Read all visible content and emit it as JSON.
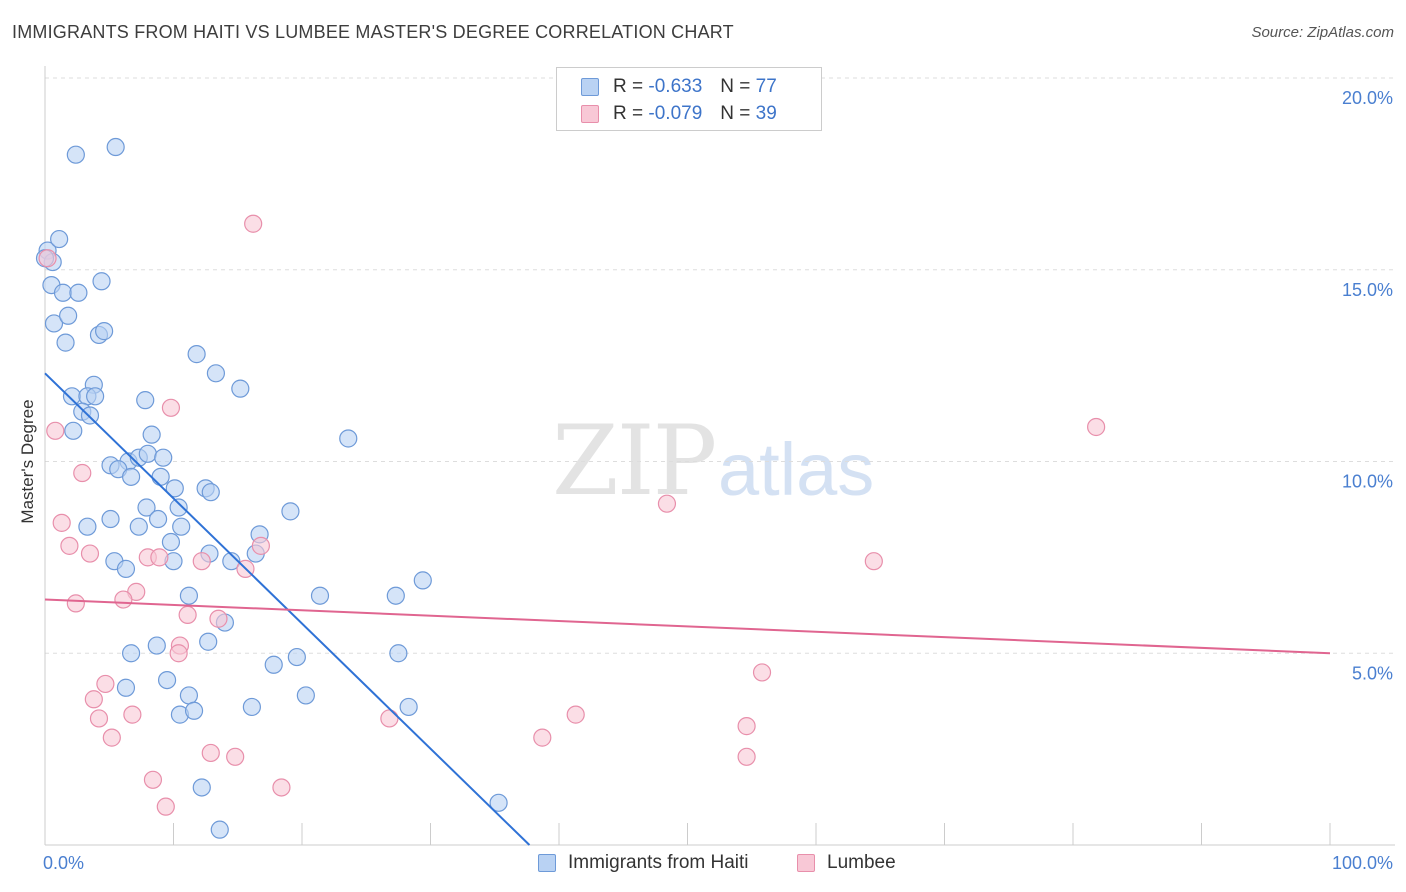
{
  "title": "IMMIGRANTS FROM HAITI VS LUMBEE MASTER'S DEGREE CORRELATION CHART",
  "source": "Source: ZipAtlas.com",
  "watermark_zip": "ZIP",
  "watermark_atlas": "atlas",
  "colors": {
    "haiti_fill": "#b9d2f3",
    "haiti_stroke": "#6e9ad8",
    "haiti_line": "#2f72d6",
    "lumbee_fill": "#f8c8d6",
    "lumbee_stroke": "#e88fab",
    "lumbee_line": "#e06590",
    "grid": "#dddddd",
    "tick_text": "#4a7fd0"
  },
  "legend": {
    "rows": [
      {
        "r_label": "R =",
        "r_value": "-0.633",
        "n_label": "N =",
        "n_value": "77"
      },
      {
        "r_label": "R =",
        "r_value": "-0.079",
        "n_label": "N =",
        "n_value": "39"
      }
    ]
  },
  "bottom_legend": {
    "haiti": "Immigrants from Haiti",
    "lumbee": "Lumbee"
  },
  "chart_data": {
    "type": "scatter",
    "xlabel": "",
    "ylabel": "Master's Degree",
    "xlim": [
      0,
      100
    ],
    "ylim": [
      0,
      20
    ],
    "x_tick_labels": [
      "0.0%",
      "100.0%"
    ],
    "y_ticks": [
      5,
      10,
      15,
      20
    ],
    "y_tick_labels": [
      "5.0%",
      "10.0%",
      "15.0%",
      "20.0%"
    ],
    "grid": "horizontal dashed",
    "series": [
      {
        "name": "Immigrants from Haiti",
        "points": [
          [
            0.2,
            15.5
          ],
          [
            0.6,
            15.2
          ],
          [
            1.1,
            15.8
          ],
          [
            0.5,
            14.6
          ],
          [
            1.4,
            14.4
          ],
          [
            2.6,
            14.4
          ],
          [
            4.4,
            14.7
          ],
          [
            0.7,
            13.6
          ],
          [
            1.8,
            13.8
          ],
          [
            1.6,
            13.1
          ],
          [
            4.2,
            13.3
          ],
          [
            4.6,
            13.4
          ],
          [
            5.5,
            18.2
          ],
          [
            2.4,
            18.0
          ],
          [
            11.8,
            12.8
          ],
          [
            13.3,
            12.3
          ],
          [
            15.2,
            11.9
          ],
          [
            3.8,
            12.0
          ],
          [
            2.1,
            11.7
          ],
          [
            3.3,
            11.7
          ],
          [
            3.9,
            11.7
          ],
          [
            2.9,
            11.3
          ],
          [
            3.5,
            11.2
          ],
          [
            7.8,
            11.6
          ],
          [
            2.2,
            10.8
          ],
          [
            8.3,
            10.7
          ],
          [
            23.6,
            10.6
          ],
          [
            5.1,
            9.9
          ],
          [
            6.5,
            10.0
          ],
          [
            7.3,
            10.1
          ],
          [
            8.0,
            10.2
          ],
          [
            9.2,
            10.1
          ],
          [
            5.7,
            9.8
          ],
          [
            6.7,
            9.6
          ],
          [
            9.0,
            9.6
          ],
          [
            10.1,
            9.3
          ],
          [
            12.5,
            9.3
          ],
          [
            12.9,
            9.2
          ],
          [
            7.9,
            8.8
          ],
          [
            10.4,
            8.8
          ],
          [
            19.1,
            8.7
          ],
          [
            8.8,
            8.5
          ],
          [
            5.1,
            8.5
          ],
          [
            3.3,
            8.3
          ],
          [
            7.3,
            8.3
          ],
          [
            10.6,
            8.3
          ],
          [
            16.7,
            8.1
          ],
          [
            9.8,
            7.9
          ],
          [
            12.8,
            7.6
          ],
          [
            16.4,
            7.6
          ],
          [
            5.4,
            7.4
          ],
          [
            6.3,
            7.2
          ],
          [
            10.0,
            7.4
          ],
          [
            14.5,
            7.4
          ],
          [
            29.4,
            6.9
          ],
          [
            11.2,
            6.5
          ],
          [
            21.4,
            6.5
          ],
          [
            27.3,
            6.5
          ],
          [
            14.0,
            5.8
          ],
          [
            12.7,
            5.3
          ],
          [
            8.7,
            5.2
          ],
          [
            6.7,
            5.0
          ],
          [
            27.5,
            5.0
          ],
          [
            19.6,
            4.9
          ],
          [
            17.8,
            4.7
          ],
          [
            9.5,
            4.3
          ],
          [
            6.3,
            4.1
          ],
          [
            11.2,
            3.9
          ],
          [
            20.3,
            3.9
          ],
          [
            10.5,
            3.4
          ],
          [
            11.6,
            3.5
          ],
          [
            16.1,
            3.6
          ],
          [
            28.3,
            3.6
          ],
          [
            35.3,
            1.1
          ],
          [
            12.2,
            1.5
          ],
          [
            13.6,
            0.4
          ],
          [
            0.0,
            15.3
          ]
        ]
      },
      {
        "name": "Lumbee",
        "points": [
          [
            0.2,
            15.3
          ],
          [
            16.2,
            16.2
          ],
          [
            9.8,
            11.4
          ],
          [
            81.8,
            10.9
          ],
          [
            0.8,
            10.8
          ],
          [
            2.9,
            9.7
          ],
          [
            48.4,
            8.9
          ],
          [
            1.3,
            8.4
          ],
          [
            1.9,
            7.8
          ],
          [
            3.5,
            7.6
          ],
          [
            8.0,
            7.5
          ],
          [
            8.9,
            7.5
          ],
          [
            12.2,
            7.4
          ],
          [
            16.8,
            7.8
          ],
          [
            15.6,
            7.2
          ],
          [
            64.5,
            7.4
          ],
          [
            7.1,
            6.6
          ],
          [
            6.1,
            6.4
          ],
          [
            2.4,
            6.3
          ],
          [
            11.1,
            6.0
          ],
          [
            13.5,
            5.9
          ],
          [
            10.5,
            5.2
          ],
          [
            10.4,
            5.0
          ],
          [
            55.8,
            4.5
          ],
          [
            4.7,
            4.2
          ],
          [
            3.8,
            3.8
          ],
          [
            4.2,
            3.3
          ],
          [
            6.8,
            3.4
          ],
          [
            26.8,
            3.3
          ],
          [
            41.3,
            3.4
          ],
          [
            54.6,
            3.1
          ],
          [
            5.2,
            2.8
          ],
          [
            38.7,
            2.8
          ],
          [
            12.9,
            2.4
          ],
          [
            14.8,
            2.3
          ],
          [
            54.6,
            2.3
          ],
          [
            8.4,
            1.7
          ],
          [
            18.4,
            1.5
          ],
          [
            9.4,
            1.0
          ]
        ]
      }
    ],
    "trend_lines": [
      {
        "name": "Immigrants from Haiti",
        "from": [
          0,
          12.3
        ],
        "to": [
          37.7,
          0
        ]
      },
      {
        "name": "Lumbee",
        "from": [
          0,
          6.4
        ],
        "to": [
          100,
          5.0
        ]
      }
    ]
  }
}
